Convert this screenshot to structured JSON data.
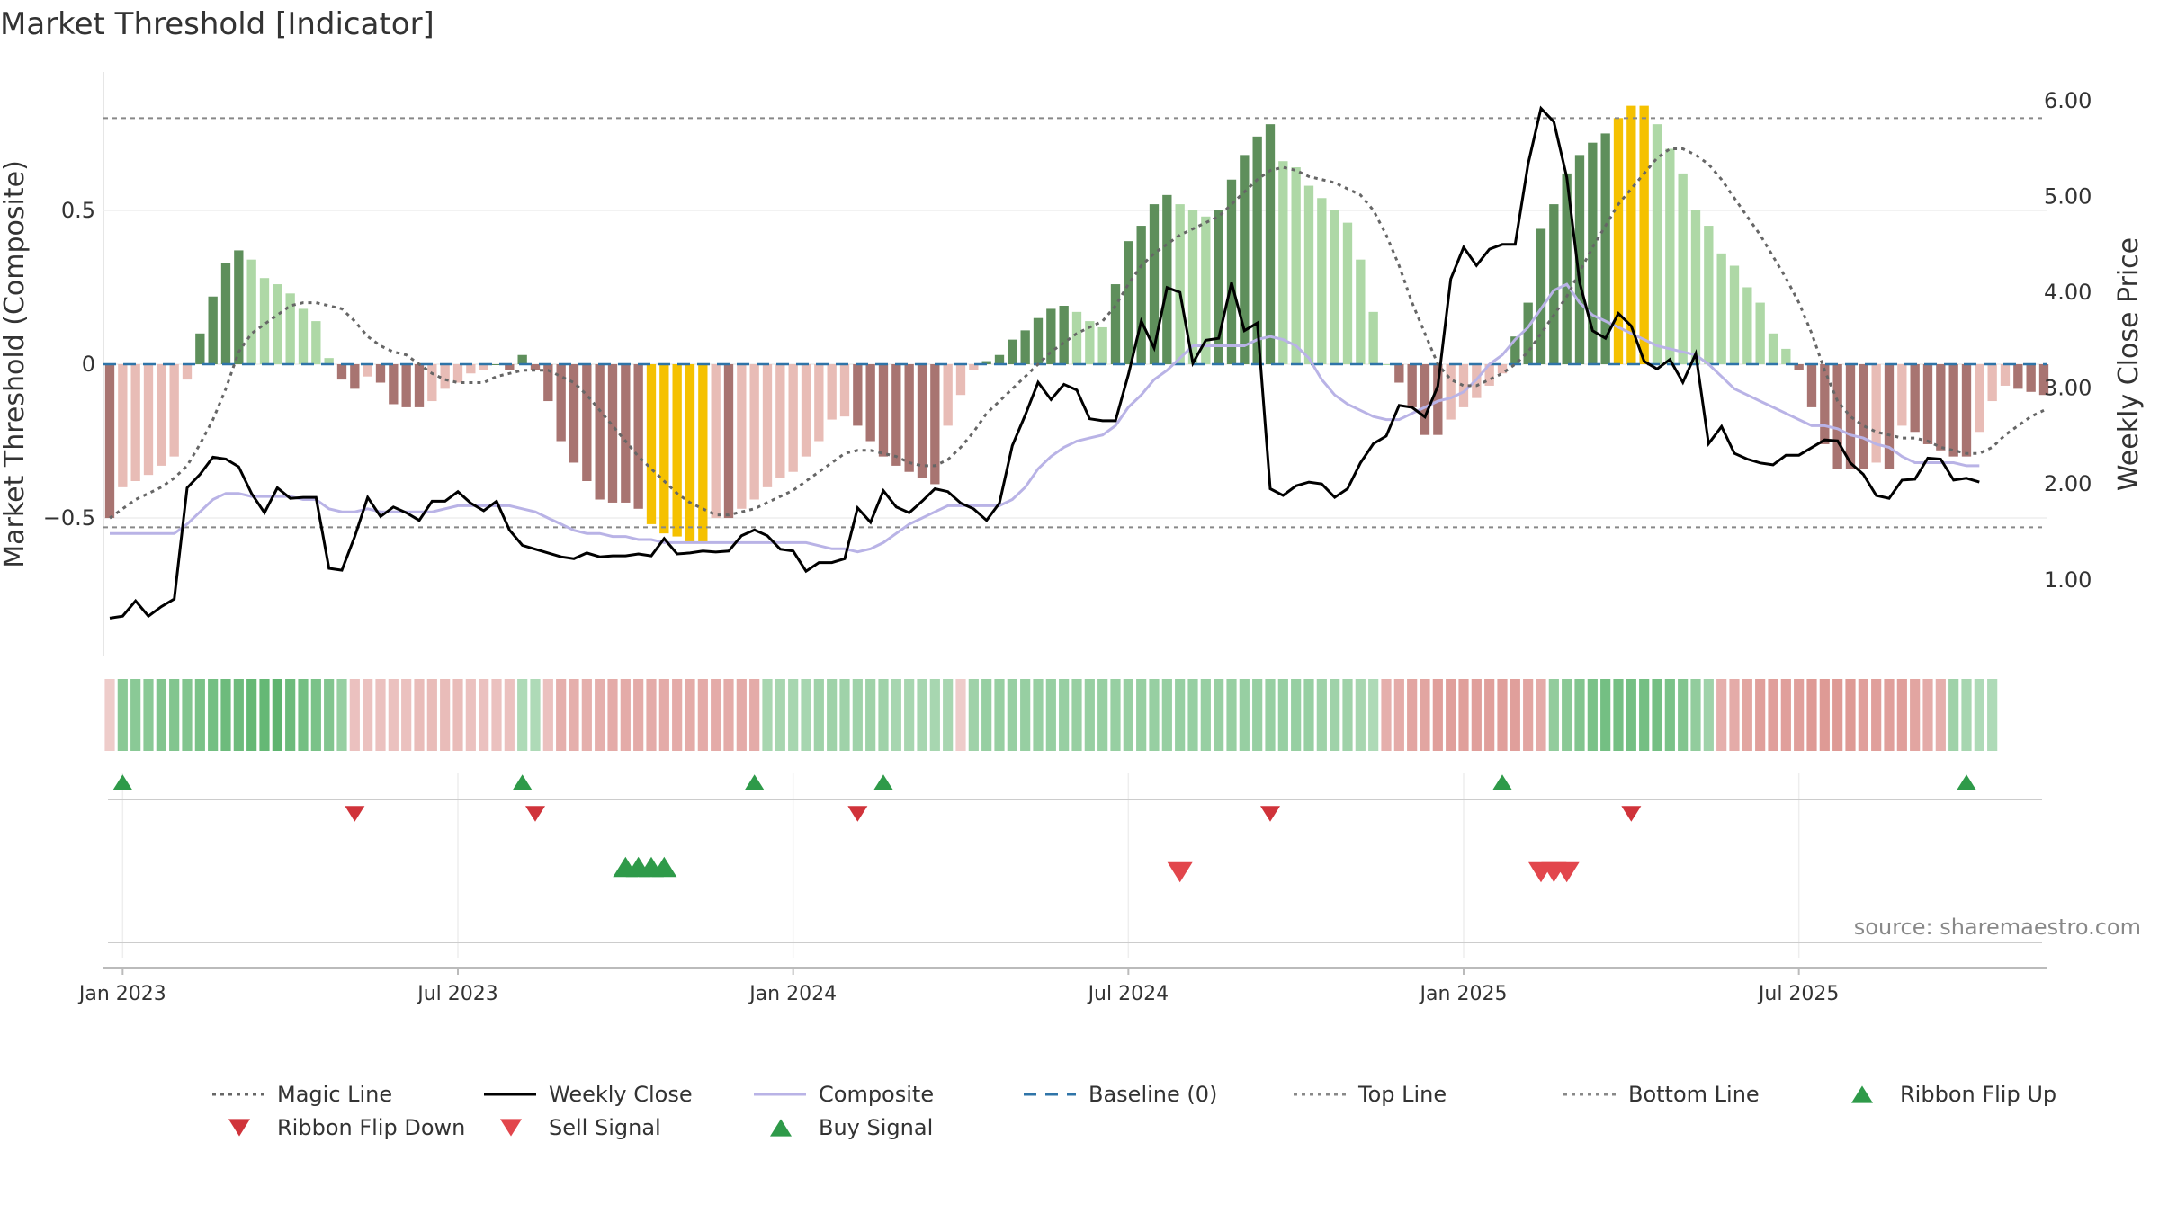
{
  "chart_data": {
    "type": "bar",
    "title": "Market Threshold [Indicator]",
    "ylabel_left": "Market Threshold (Composite)",
    "ylabel_right": "Weekly Close Price",
    "source": "source: sharemaestro.com",
    "left_axis": {
      "ylim": [
        -0.95,
        0.95
      ],
      "ticks": [
        0.5,
        0,
        -0.5
      ],
      "tick_labels": [
        "0.5",
        "0",
        "−0.5"
      ]
    },
    "right_axis": {
      "ylim": [
        0.2,
        6.3
      ],
      "ticks": [
        6,
        5,
        4,
        3,
        2,
        1
      ],
      "tick_labels": [
        "6.00",
        "5.00",
        "4.00",
        "3.00",
        "2.00",
        "1.00"
      ]
    },
    "x_ticks": [
      "Jan 2023",
      "Jul 2023",
      "Jan 2024",
      "Jul 2024",
      "Jan 2025",
      "Jul 2025"
    ],
    "top_line": 0.8,
    "bottom_line": -0.53,
    "baseline": 0,
    "histogram": [
      -0.5,
      -0.4,
      -0.38,
      -0.36,
      -0.33,
      -0.3,
      -0.05,
      0.1,
      0.22,
      0.33,
      0.37,
      0.34,
      0.28,
      0.26,
      0.23,
      0.18,
      0.14,
      0.02,
      -0.05,
      -0.08,
      -0.04,
      -0.06,
      -0.13,
      -0.14,
      -0.14,
      -0.12,
      -0.08,
      -0.06,
      -0.03,
      -0.02,
      0.0,
      -0.02,
      0.03,
      -0.02,
      -0.12,
      -0.25,
      -0.32,
      -0.38,
      -0.44,
      -0.45,
      -0.45,
      -0.47,
      -0.52,
      -0.55,
      -0.56,
      -0.58,
      -0.58,
      -0.5,
      -0.5,
      -0.47,
      -0.44,
      -0.4,
      -0.37,
      -0.35,
      -0.3,
      -0.25,
      -0.18,
      -0.17,
      -0.2,
      -0.25,
      -0.3,
      -0.33,
      -0.35,
      -0.37,
      -0.39,
      -0.2,
      -0.1,
      -0.02,
      0.01,
      0.03,
      0.08,
      0.11,
      0.15,
      0.18,
      0.19,
      0.17,
      0.14,
      0.12,
      0.26,
      0.4,
      0.45,
      0.52,
      0.55,
      0.52,
      0.5,
      0.48,
      0.5,
      0.6,
      0.68,
      0.74,
      0.78,
      0.66,
      0.64,
      0.58,
      0.54,
      0.5,
      0.46,
      0.34,
      0.17,
      0.0,
      -0.06,
      -0.14,
      -0.23,
      -0.23,
      -0.18,
      -0.14,
      -0.11,
      -0.07,
      -0.03,
      0.09,
      0.2,
      0.44,
      0.52,
      0.62,
      0.68,
      0.72,
      0.75,
      0.8,
      0.84,
      0.84,
      0.78,
      0.7,
      0.62,
      0.5,
      0.45,
      0.36,
      0.32,
      0.25,
      0.2,
      0.1,
      0.05,
      -0.02,
      -0.14,
      -0.26,
      -0.34,
      -0.34,
      -0.34,
      -0.32,
      -0.34,
      -0.2,
      -0.22,
      -0.26,
      -0.28,
      -0.3,
      -0.3,
      -0.22,
      -0.12,
      -0.07,
      -0.08,
      -0.09,
      -0.1
    ],
    "weekly_close": [
      0.6,
      0.62,
      0.78,
      0.62,
      0.72,
      0.8,
      1.96,
      2.1,
      2.28,
      2.26,
      2.18,
      1.9,
      1.7,
      1.96,
      1.85,
      1.86,
      1.86,
      1.12,
      1.1,
      1.45,
      1.86,
      1.66,
      1.76,
      1.7,
      1.62,
      1.82,
      1.82,
      1.92,
      1.8,
      1.72,
      1.82,
      1.52,
      1.36,
      1.32,
      1.28,
      1.24,
      1.22,
      1.28,
      1.24,
      1.25,
      1.25,
      1.27,
      1.25,
      1.43,
      1.27,
      1.28,
      1.3,
      1.29,
      1.3,
      1.46,
      1.52,
      1.46,
      1.32,
      1.3,
      1.09,
      1.18,
      1.18,
      1.22,
      1.75,
      1.6,
      1.93,
      1.76,
      1.7,
      1.82,
      1.95,
      1.92,
      1.8,
      1.74,
      1.62,
      1.8,
      2.4,
      2.72,
      3.06,
      2.88,
      3.04,
      2.98,
      2.68,
      2.66,
      2.66,
      3.14,
      3.7,
      3.42,
      4.05,
      4.0,
      3.26,
      3.5,
      3.52,
      4.1,
      3.6,
      3.68,
      1.95,
      1.88,
      1.98,
      2.02,
      2.0,
      1.86,
      1.95,
      2.22,
      2.42,
      2.5,
      2.82,
      2.8,
      2.7,
      3.02,
      4.14,
      4.47,
      4.28,
      4.45,
      4.5,
      4.5,
      5.34,
      5.92,
      5.78,
      5.2,
      4.1,
      3.6,
      3.52,
      3.78,
      3.65,
      3.28,
      3.2,
      3.3,
      3.06,
      3.36,
      2.42,
      2.6,
      2.32,
      2.26,
      2.22,
      2.2,
      2.3,
      2.3,
      2.38,
      2.46,
      2.45,
      2.22,
      2.1,
      1.88,
      1.85,
      2.04,
      2.05,
      2.27,
      2.26,
      2.04,
      2.06,
      2.02
    ],
    "composite": [
      -0.55,
      -0.55,
      -0.55,
      -0.55,
      -0.55,
      -0.55,
      -0.52,
      -0.48,
      -0.44,
      -0.42,
      -0.42,
      -0.43,
      -0.43,
      -0.43,
      -0.43,
      -0.44,
      -0.44,
      -0.47,
      -0.48,
      -0.48,
      -0.47,
      -0.48,
      -0.48,
      -0.48,
      -0.48,
      -0.48,
      -0.47,
      -0.46,
      -0.46,
      -0.46,
      -0.46,
      -0.46,
      -0.47,
      -0.48,
      -0.5,
      -0.52,
      -0.54,
      -0.55,
      -0.55,
      -0.56,
      -0.56,
      -0.57,
      -0.57,
      -0.58,
      -0.58,
      -0.58,
      -0.58,
      -0.58,
      -0.58,
      -0.58,
      -0.58,
      -0.58,
      -0.58,
      -0.58,
      -0.58,
      -0.59,
      -0.6,
      -0.6,
      -0.61,
      -0.6,
      -0.58,
      -0.55,
      -0.52,
      -0.5,
      -0.48,
      -0.46,
      -0.46,
      -0.46,
      -0.46,
      -0.46,
      -0.44,
      -0.4,
      -0.34,
      -0.3,
      -0.27,
      -0.25,
      -0.24,
      -0.23,
      -0.2,
      -0.14,
      -0.1,
      -0.05,
      -0.02,
      0.02,
      0.06,
      0.06,
      0.06,
      0.06,
      0.06,
      0.08,
      0.09,
      0.08,
      0.06,
      0.02,
      -0.05,
      -0.1,
      -0.13,
      -0.15,
      -0.17,
      -0.18,
      -0.18,
      -0.16,
      -0.14,
      -0.12,
      -0.11,
      -0.09,
      -0.05,
      0.0,
      0.03,
      0.08,
      0.12,
      0.18,
      0.24,
      0.26,
      0.2,
      0.16,
      0.14,
      0.12,
      0.1,
      0.08,
      0.06,
      0.05,
      0.04,
      0.03,
      0.0,
      -0.04,
      -0.08,
      -0.1,
      -0.12,
      -0.14,
      -0.16,
      -0.18,
      -0.2,
      -0.2,
      -0.21,
      -0.23,
      -0.24,
      -0.26,
      -0.27,
      -0.3,
      -0.32,
      -0.32,
      -0.32,
      -0.32,
      -0.33,
      -0.33
    ],
    "magic_line": [
      -0.5,
      -0.47,
      -0.44,
      -0.42,
      -0.4,
      -0.37,
      -0.33,
      -0.26,
      -0.18,
      -0.08,
      0.04,
      0.1,
      0.13,
      0.16,
      0.19,
      0.2,
      0.2,
      0.19,
      0.18,
      0.14,
      0.09,
      0.06,
      0.04,
      0.03,
      0.0,
      -0.03,
      -0.05,
      -0.06,
      -0.06,
      -0.06,
      -0.04,
      -0.03,
      -0.02,
      -0.02,
      -0.02,
      -0.04,
      -0.06,
      -0.1,
      -0.15,
      -0.2,
      -0.25,
      -0.3,
      -0.34,
      -0.38,
      -0.42,
      -0.45,
      -0.47,
      -0.49,
      -0.49,
      -0.48,
      -0.47,
      -0.45,
      -0.43,
      -0.41,
      -0.38,
      -0.35,
      -0.32,
      -0.29,
      -0.28,
      -0.28,
      -0.29,
      -0.3,
      -0.32,
      -0.33,
      -0.33,
      -0.31,
      -0.27,
      -0.22,
      -0.16,
      -0.12,
      -0.08,
      -0.04,
      0.0,
      0.04,
      0.07,
      0.1,
      0.12,
      0.14,
      0.19,
      0.26,
      0.32,
      0.36,
      0.39,
      0.42,
      0.44,
      0.46,
      0.48,
      0.52,
      0.56,
      0.6,
      0.63,
      0.64,
      0.63,
      0.61,
      0.6,
      0.59,
      0.57,
      0.55,
      0.5,
      0.42,
      0.32,
      0.2,
      0.1,
      0.0,
      -0.05,
      -0.07,
      -0.07,
      -0.05,
      -0.03,
      0.0,
      0.04,
      0.1,
      0.16,
      0.22,
      0.3,
      0.38,
      0.45,
      0.52,
      0.57,
      0.62,
      0.67,
      0.7,
      0.7,
      0.68,
      0.65,
      0.6,
      0.54,
      0.48,
      0.42,
      0.35,
      0.28,
      0.2,
      0.1,
      -0.02,
      -0.12,
      -0.17,
      -0.2,
      -0.22,
      -0.23,
      -0.24,
      -0.24,
      -0.25,
      -0.27,
      -0.28,
      -0.29,
      -0.29,
      -0.27,
      -0.23,
      -0.2,
      -0.17,
      -0.15
    ],
    "ribbon": [
      -0.2,
      0.55,
      0.55,
      0.55,
      0.6,
      0.6,
      0.6,
      0.65,
      0.7,
      0.75,
      0.75,
      0.8,
      0.8,
      0.85,
      0.75,
      0.7,
      0.65,
      0.6,
      0.45,
      -0.3,
      -0.3,
      -0.3,
      -0.3,
      -0.3,
      -0.35,
      -0.35,
      -0.35,
      -0.35,
      -0.3,
      -0.3,
      -0.3,
      -0.3,
      0.3,
      0.3,
      -0.3,
      -0.45,
      -0.45,
      -0.45,
      -0.45,
      -0.5,
      -0.5,
      -0.5,
      -0.5,
      -0.5,
      -0.5,
      -0.5,
      -0.5,
      -0.5,
      -0.5,
      -0.5,
      -0.5,
      0.35,
      0.35,
      0.35,
      0.35,
      0.4,
      0.4,
      0.4,
      0.4,
      0.4,
      0.4,
      0.35,
      0.35,
      0.35,
      0.35,
      0.35,
      -0.2,
      0.4,
      0.45,
      0.45,
      0.45,
      0.45,
      0.45,
      0.45,
      0.45,
      0.45,
      0.45,
      0.45,
      0.45,
      0.45,
      0.45,
      0.45,
      0.45,
      0.45,
      0.45,
      0.45,
      0.45,
      0.45,
      0.45,
      0.45,
      0.45,
      0.45,
      0.45,
      0.45,
      0.4,
      0.4,
      0.4,
      0.35,
      0.3,
      -0.45,
      -0.5,
      -0.55,
      -0.55,
      -0.6,
      -0.6,
      -0.6,
      -0.6,
      -0.6,
      -0.6,
      -0.6,
      -0.55,
      -0.5,
      0.5,
      0.55,
      0.6,
      0.65,
      0.7,
      0.7,
      0.7,
      0.7,
      0.7,
      0.65,
      0.6,
      0.5,
      0.4,
      -0.45,
      -0.5,
      -0.55,
      -0.6,
      -0.6,
      -0.6,
      -0.6,
      -0.65,
      -0.65,
      -0.65,
      -0.65,
      -0.6,
      -0.6,
      -0.6,
      -0.6,
      -0.55,
      -0.5,
      -0.45,
      0.4,
      0.35,
      0.3,
      0.3
    ],
    "ribbon_flip_up": [
      1,
      32,
      50,
      60,
      108,
      144
    ],
    "ribbon_flip_down": [
      19,
      33,
      58,
      90,
      118
    ],
    "buy_signal": [
      40,
      41,
      42,
      43
    ],
    "sell_signal": [
      83,
      111,
      112,
      113
    ],
    "legend": [
      {
        "name": "Magic Line",
        "kind": "dotted",
        "color": "#666666"
      },
      {
        "name": "Weekly Close",
        "kind": "solid",
        "color": "#000000"
      },
      {
        "name": "Composite",
        "kind": "solid",
        "color": "#b9b3e6"
      },
      {
        "name": "Baseline (0)",
        "kind": "dashed",
        "color": "#2f74a8"
      },
      {
        "name": "Top Line",
        "kind": "dotted",
        "color": "#888888"
      },
      {
        "name": "Bottom Line",
        "kind": "dotted",
        "color": "#888888"
      },
      {
        "name": "Ribbon Flip Up",
        "kind": "tri-up",
        "color": "#2e9a49"
      },
      {
        "name": "Ribbon Flip Down",
        "kind": "tri-down",
        "color": "#d0333a"
      },
      {
        "name": "Sell Signal",
        "kind": "tri-down",
        "color": "#e2464c"
      },
      {
        "name": "Buy Signal",
        "kind": "tri-up",
        "color": "#2e9a49"
      }
    ],
    "colors": {
      "bar_pos_strong": "#5e8f5b",
      "bar_pos_weak": "#aed8a6",
      "bar_neg_strong": "#a87471",
      "bar_neg_weak": "#e8bcb6",
      "bar_extreme": "#f5c100",
      "ribbon_pos": "#3fa653",
      "ribbon_neg": "#cf6c66"
    }
  }
}
